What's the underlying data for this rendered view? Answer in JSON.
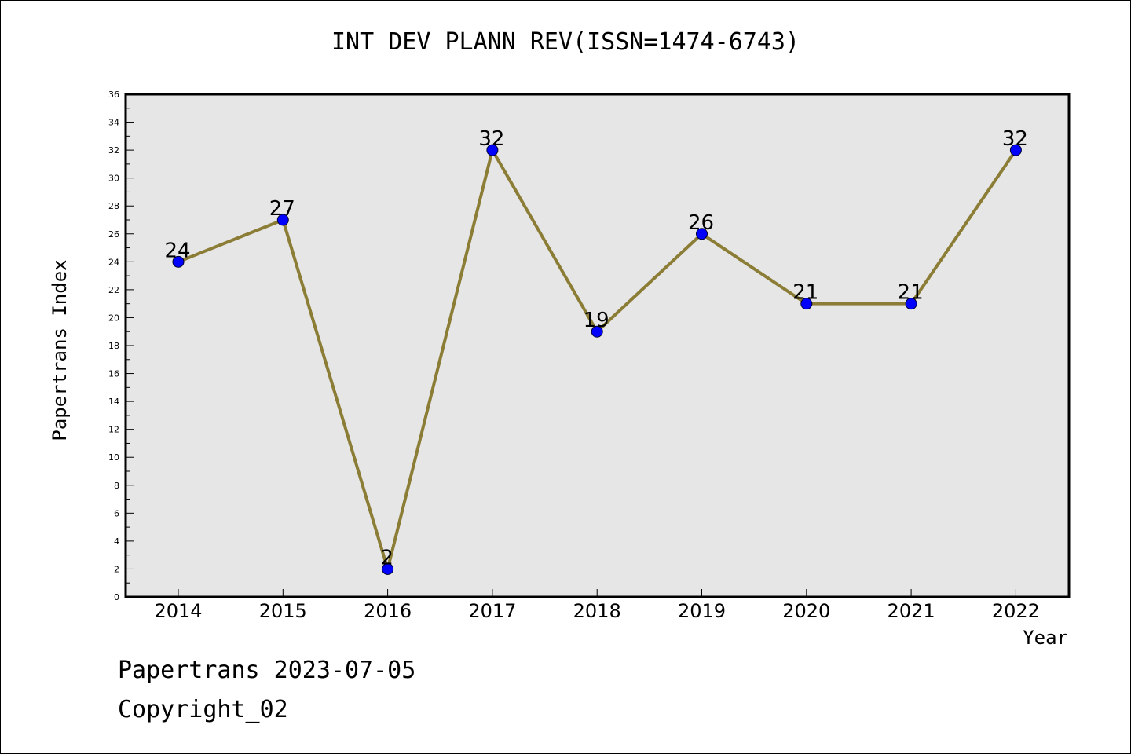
{
  "header": {
    "title": "INT DEV PLANN REV(ISSN=1474-6743)"
  },
  "footer": {
    "date_line": "Papertrans 2023-07-05",
    "copyright_line": "Copyright_02"
  },
  "colors": {
    "plot_background": "#e6e6e6",
    "line": "#8b7d35",
    "marker_fill": "#0000ff",
    "axis": "#000000"
  },
  "chart_data": {
    "type": "line",
    "title": "INT DEV PLANN REV(ISSN=1474-6743)",
    "xlabel": "Year",
    "ylabel": "Papertrans Index",
    "categories": [
      "2014",
      "2015",
      "2016",
      "2017",
      "2018",
      "2019",
      "2020",
      "2021",
      "2022"
    ],
    "series": [
      {
        "values": [
          24,
          27,
          2,
          32,
          19,
          26,
          21,
          21,
          32
        ]
      }
    ],
    "ylim": [
      0,
      36
    ],
    "yticks": [
      0,
      2,
      4,
      6,
      8,
      10,
      12,
      14,
      16,
      18,
      20,
      22,
      24,
      26,
      28,
      30,
      32,
      34,
      36
    ],
    "grid": false,
    "data_labels": true,
    "marker": "circle"
  }
}
